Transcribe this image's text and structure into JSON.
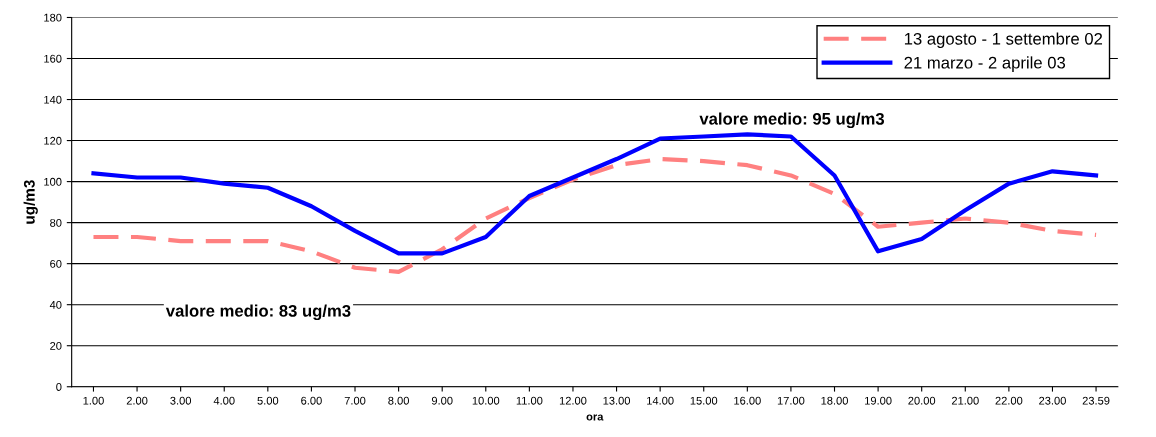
{
  "chart_data": {
    "type": "line",
    "xlabel": "ora",
    "ylabel": "ug/m3",
    "categories": [
      "1.00",
      "2.00",
      "3.00",
      "4.00",
      "5.00",
      "6.00",
      "7.00",
      "8.00",
      "9.00",
      "10.00",
      "11.00",
      "12.00",
      "13.00",
      "14.00",
      "15.00",
      "16.00",
      "17.00",
      "18.00",
      "19.00",
      "20.00",
      "21.00",
      "22.00",
      "23.00",
      "23.59"
    ],
    "series": [
      {
        "name": "13 agosto - 1 settembre 02",
        "color": "#ff8080",
        "line_style": "dashed",
        "values": [
          73,
          73,
          71,
          71,
          71,
          66,
          58,
          56,
          67,
          82,
          92,
          101,
          108,
          111,
          110,
          108,
          103,
          94,
          78,
          80,
          82,
          80,
          76,
          74
        ]
      },
      {
        "name": "21 marzo - 2 aprile 03",
        "color": "#0000ff",
        "line_style": "solid",
        "values": [
          104,
          102,
          102,
          99,
          97,
          88,
          76,
          65,
          65,
          73,
          93,
          102,
          111,
          121,
          122,
          123,
          122,
          103,
          66,
          72,
          86,
          99,
          105,
          103
        ]
      }
    ],
    "annotations": [
      "valore medio: 83 ug/m3",
      "valore medio: 95 ug/m3"
    ],
    "ylim": [
      0,
      180
    ],
    "yticks": [
      0,
      20,
      40,
      60,
      80,
      100,
      120,
      140,
      160,
      180
    ],
    "grid": "y",
    "legend": "top right",
    "marker": "none"
  }
}
